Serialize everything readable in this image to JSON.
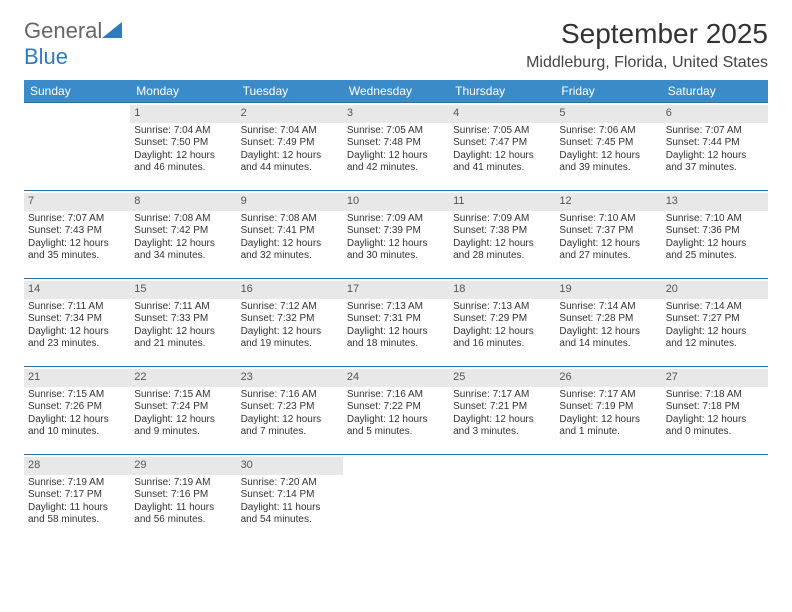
{
  "logo": {
    "text1": "General",
    "text2": "Blue"
  },
  "colors": {
    "header_bg": "#3b8bc9",
    "header_text": "#ffffff",
    "row_border": "#2f6fa3",
    "daynum_bg": "#e8e8e8",
    "body_text": "#333333",
    "logo_general": "#666666",
    "logo_blue": "#2f7bbf"
  },
  "title": "September 2025",
  "location": "Middleburg, Florida, United States",
  "weekdays": [
    "Sunday",
    "Monday",
    "Tuesday",
    "Wednesday",
    "Thursday",
    "Friday",
    "Saturday"
  ],
  "weeks": [
    [
      {
        "day": "",
        "sunrise": "",
        "sunset": "",
        "daylight": ""
      },
      {
        "day": "1",
        "sunrise": "Sunrise: 7:04 AM",
        "sunset": "Sunset: 7:50 PM",
        "daylight": "Daylight: 12 hours and 46 minutes."
      },
      {
        "day": "2",
        "sunrise": "Sunrise: 7:04 AM",
        "sunset": "Sunset: 7:49 PM",
        "daylight": "Daylight: 12 hours and 44 minutes."
      },
      {
        "day": "3",
        "sunrise": "Sunrise: 7:05 AM",
        "sunset": "Sunset: 7:48 PM",
        "daylight": "Daylight: 12 hours and 42 minutes."
      },
      {
        "day": "4",
        "sunrise": "Sunrise: 7:05 AM",
        "sunset": "Sunset: 7:47 PM",
        "daylight": "Daylight: 12 hours and 41 minutes."
      },
      {
        "day": "5",
        "sunrise": "Sunrise: 7:06 AM",
        "sunset": "Sunset: 7:45 PM",
        "daylight": "Daylight: 12 hours and 39 minutes."
      },
      {
        "day": "6",
        "sunrise": "Sunrise: 7:07 AM",
        "sunset": "Sunset: 7:44 PM",
        "daylight": "Daylight: 12 hours and 37 minutes."
      }
    ],
    [
      {
        "day": "7",
        "sunrise": "Sunrise: 7:07 AM",
        "sunset": "Sunset: 7:43 PM",
        "daylight": "Daylight: 12 hours and 35 minutes."
      },
      {
        "day": "8",
        "sunrise": "Sunrise: 7:08 AM",
        "sunset": "Sunset: 7:42 PM",
        "daylight": "Daylight: 12 hours and 34 minutes."
      },
      {
        "day": "9",
        "sunrise": "Sunrise: 7:08 AM",
        "sunset": "Sunset: 7:41 PM",
        "daylight": "Daylight: 12 hours and 32 minutes."
      },
      {
        "day": "10",
        "sunrise": "Sunrise: 7:09 AM",
        "sunset": "Sunset: 7:39 PM",
        "daylight": "Daylight: 12 hours and 30 minutes."
      },
      {
        "day": "11",
        "sunrise": "Sunrise: 7:09 AM",
        "sunset": "Sunset: 7:38 PM",
        "daylight": "Daylight: 12 hours and 28 minutes."
      },
      {
        "day": "12",
        "sunrise": "Sunrise: 7:10 AM",
        "sunset": "Sunset: 7:37 PM",
        "daylight": "Daylight: 12 hours and 27 minutes."
      },
      {
        "day": "13",
        "sunrise": "Sunrise: 7:10 AM",
        "sunset": "Sunset: 7:36 PM",
        "daylight": "Daylight: 12 hours and 25 minutes."
      }
    ],
    [
      {
        "day": "14",
        "sunrise": "Sunrise: 7:11 AM",
        "sunset": "Sunset: 7:34 PM",
        "daylight": "Daylight: 12 hours and 23 minutes."
      },
      {
        "day": "15",
        "sunrise": "Sunrise: 7:11 AM",
        "sunset": "Sunset: 7:33 PM",
        "daylight": "Daylight: 12 hours and 21 minutes."
      },
      {
        "day": "16",
        "sunrise": "Sunrise: 7:12 AM",
        "sunset": "Sunset: 7:32 PM",
        "daylight": "Daylight: 12 hours and 19 minutes."
      },
      {
        "day": "17",
        "sunrise": "Sunrise: 7:13 AM",
        "sunset": "Sunset: 7:31 PM",
        "daylight": "Daylight: 12 hours and 18 minutes."
      },
      {
        "day": "18",
        "sunrise": "Sunrise: 7:13 AM",
        "sunset": "Sunset: 7:29 PM",
        "daylight": "Daylight: 12 hours and 16 minutes."
      },
      {
        "day": "19",
        "sunrise": "Sunrise: 7:14 AM",
        "sunset": "Sunset: 7:28 PM",
        "daylight": "Daylight: 12 hours and 14 minutes."
      },
      {
        "day": "20",
        "sunrise": "Sunrise: 7:14 AM",
        "sunset": "Sunset: 7:27 PM",
        "daylight": "Daylight: 12 hours and 12 minutes."
      }
    ],
    [
      {
        "day": "21",
        "sunrise": "Sunrise: 7:15 AM",
        "sunset": "Sunset: 7:26 PM",
        "daylight": "Daylight: 12 hours and 10 minutes."
      },
      {
        "day": "22",
        "sunrise": "Sunrise: 7:15 AM",
        "sunset": "Sunset: 7:24 PM",
        "daylight": "Daylight: 12 hours and 9 minutes."
      },
      {
        "day": "23",
        "sunrise": "Sunrise: 7:16 AM",
        "sunset": "Sunset: 7:23 PM",
        "daylight": "Daylight: 12 hours and 7 minutes."
      },
      {
        "day": "24",
        "sunrise": "Sunrise: 7:16 AM",
        "sunset": "Sunset: 7:22 PM",
        "daylight": "Daylight: 12 hours and 5 minutes."
      },
      {
        "day": "25",
        "sunrise": "Sunrise: 7:17 AM",
        "sunset": "Sunset: 7:21 PM",
        "daylight": "Daylight: 12 hours and 3 minutes."
      },
      {
        "day": "26",
        "sunrise": "Sunrise: 7:17 AM",
        "sunset": "Sunset: 7:19 PM",
        "daylight": "Daylight: 12 hours and 1 minute."
      },
      {
        "day": "27",
        "sunrise": "Sunrise: 7:18 AM",
        "sunset": "Sunset: 7:18 PM",
        "daylight": "Daylight: 12 hours and 0 minutes."
      }
    ],
    [
      {
        "day": "28",
        "sunrise": "Sunrise: 7:19 AM",
        "sunset": "Sunset: 7:17 PM",
        "daylight": "Daylight: 11 hours and 58 minutes."
      },
      {
        "day": "29",
        "sunrise": "Sunrise: 7:19 AM",
        "sunset": "Sunset: 7:16 PM",
        "daylight": "Daylight: 11 hours and 56 minutes."
      },
      {
        "day": "30",
        "sunrise": "Sunrise: 7:20 AM",
        "sunset": "Sunset: 7:14 PM",
        "daylight": "Daylight: 11 hours and 54 minutes."
      },
      {
        "day": "",
        "sunrise": "",
        "sunset": "",
        "daylight": ""
      },
      {
        "day": "",
        "sunrise": "",
        "sunset": "",
        "daylight": ""
      },
      {
        "day": "",
        "sunrise": "",
        "sunset": "",
        "daylight": ""
      },
      {
        "day": "",
        "sunrise": "",
        "sunset": "",
        "daylight": ""
      }
    ]
  ]
}
